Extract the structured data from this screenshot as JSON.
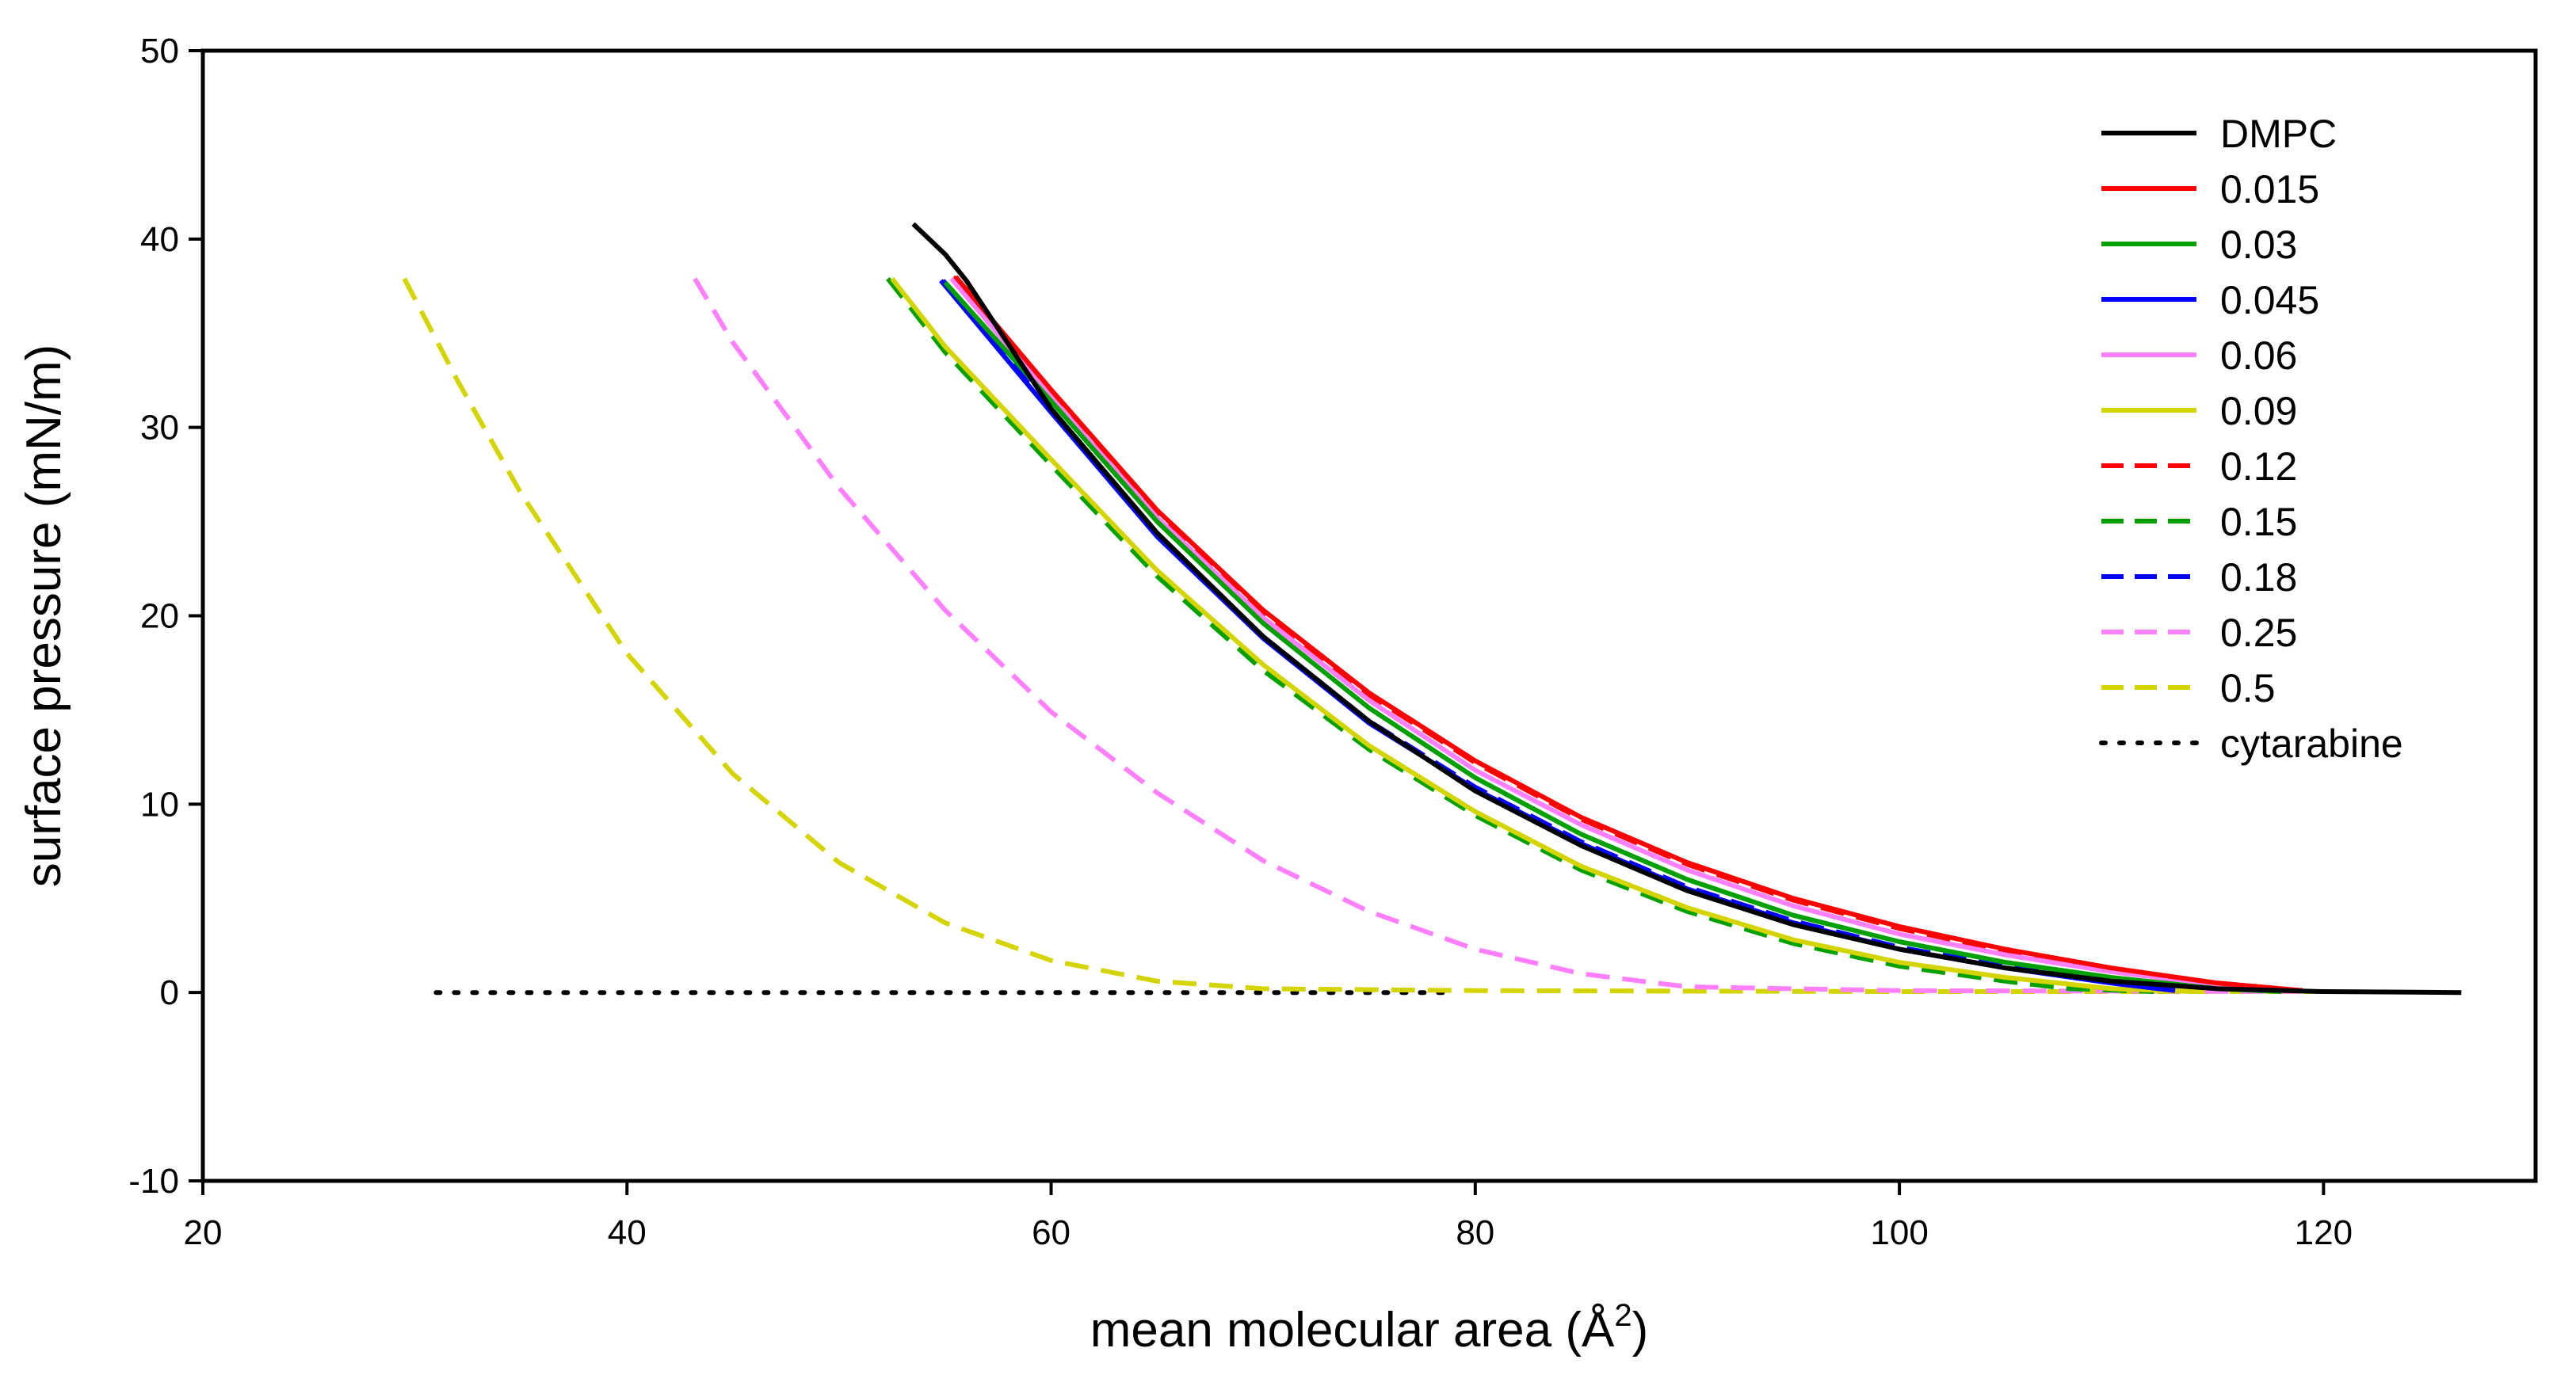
{
  "chart_data": {
    "type": "line",
    "title": "",
    "xlabel": "mean molecular area (Å",
    "xlabel_sup": "2",
    "xlabel_end": ")",
    "ylabel": "surface pressure (mN/m)",
    "xlim": [
      20,
      130
    ],
    "ylim": [
      -10,
      50
    ],
    "xticks": [
      20,
      40,
      60,
      80,
      100,
      120
    ],
    "yticks": [
      -10,
      0,
      10,
      20,
      30,
      40,
      50
    ],
    "grid": false,
    "legend_position": "top-right",
    "series": [
      {
        "name": "DMPC",
        "color": "#000000",
        "style": "solid",
        "points": [
          [
            53.5,
            40.8
          ],
          [
            55.0,
            39.2
          ],
          [
            56.0,
            37.8
          ],
          [
            60,
            31.0
          ],
          [
            65,
            24.4
          ],
          [
            70,
            18.9
          ],
          [
            75,
            14.4
          ],
          [
            80,
            10.7
          ],
          [
            85,
            7.8
          ],
          [
            90,
            5.4
          ],
          [
            95,
            3.6
          ],
          [
            100,
            2.3
          ],
          [
            105,
            1.3
          ],
          [
            110,
            0.6
          ],
          [
            115,
            0.2
          ],
          [
            120,
            0.05
          ],
          [
            126.5,
            0.0
          ]
        ]
      },
      {
        "name": "0.015",
        "color": "#ff0000",
        "style": "solid",
        "points": [
          [
            55.5,
            38.0
          ],
          [
            60,
            32.0
          ],
          [
            65,
            25.6
          ],
          [
            70,
            20.3
          ],
          [
            75,
            15.9
          ],
          [
            80,
            12.3
          ],
          [
            85,
            9.3
          ],
          [
            90,
            6.9
          ],
          [
            95,
            5.0
          ],
          [
            100,
            3.5
          ],
          [
            105,
            2.3
          ],
          [
            110,
            1.3
          ],
          [
            115,
            0.5
          ],
          [
            119,
            0.1
          ]
        ]
      },
      {
        "name": "0.03",
        "color": "#00a000",
        "style": "solid",
        "points": [
          [
            55.0,
            37.7
          ],
          [
            60,
            31.4
          ],
          [
            65,
            25.0
          ],
          [
            70,
            19.6
          ],
          [
            75,
            15.1
          ],
          [
            80,
            11.4
          ],
          [
            85,
            8.4
          ],
          [
            90,
            6.0
          ],
          [
            95,
            4.1
          ],
          [
            100,
            2.7
          ],
          [
            105,
            1.6
          ],
          [
            110,
            0.8
          ],
          [
            115,
            0.2
          ],
          [
            118,
            0.05
          ]
        ]
      },
      {
        "name": "0.045",
        "color": "#0000ff",
        "style": "solid",
        "points": [
          [
            54.8,
            37.8
          ],
          [
            60,
            30.8
          ],
          [
            65,
            24.2
          ],
          [
            70,
            18.8
          ],
          [
            75,
            14.3
          ],
          [
            80,
            10.8
          ],
          [
            85,
            7.9
          ],
          [
            90,
            5.5
          ],
          [
            95,
            3.7
          ],
          [
            100,
            2.3
          ],
          [
            105,
            1.3
          ],
          [
            110,
            0.5
          ],
          [
            113,
            0.1
          ]
        ]
      },
      {
        "name": "0.06",
        "color": "#ff80ff",
        "style": "solid",
        "points": [
          [
            55.3,
            37.9
          ],
          [
            60,
            31.6
          ],
          [
            65,
            25.2
          ],
          [
            70,
            19.9
          ],
          [
            75,
            15.5
          ],
          [
            80,
            11.8
          ],
          [
            85,
            8.9
          ],
          [
            90,
            6.5
          ],
          [
            95,
            4.6
          ],
          [
            100,
            3.1
          ],
          [
            105,
            2.0
          ],
          [
            110,
            1.1
          ],
          [
            115,
            0.4
          ],
          [
            118,
            0.05
          ]
        ]
      },
      {
        "name": "0.09",
        "color": "#d4d400",
        "style": "solid",
        "points": [
          [
            52.5,
            37.9
          ],
          [
            55,
            34.3
          ],
          [
            60,
            28.3
          ],
          [
            65,
            22.4
          ],
          [
            70,
            17.4
          ],
          [
            75,
            13.1
          ],
          [
            80,
            9.6
          ],
          [
            85,
            6.7
          ],
          [
            90,
            4.5
          ],
          [
            95,
            2.8
          ],
          [
            100,
            1.6
          ],
          [
            105,
            0.8
          ],
          [
            110,
            0.2
          ],
          [
            114,
            0.05
          ]
        ]
      },
      {
        "name": "0.12",
        "color": "#ff0000",
        "style": "dashed",
        "points": [
          [
            55.4,
            38.0
          ],
          [
            60,
            31.9
          ],
          [
            65,
            25.5
          ],
          [
            70,
            20.2
          ],
          [
            75,
            15.8
          ],
          [
            80,
            12.2
          ],
          [
            85,
            9.2
          ],
          [
            90,
            6.8
          ],
          [
            95,
            4.9
          ],
          [
            100,
            3.4
          ],
          [
            105,
            2.2
          ],
          [
            110,
            1.2
          ],
          [
            115,
            0.5
          ],
          [
            119,
            0.1
          ]
        ]
      },
      {
        "name": "0.15",
        "color": "#00a000",
        "style": "dashed",
        "points": [
          [
            52.3,
            37.9
          ],
          [
            55,
            34.0
          ],
          [
            60,
            28.0
          ],
          [
            65,
            22.1
          ],
          [
            70,
            17.1
          ],
          [
            75,
            12.9
          ],
          [
            80,
            9.4
          ],
          [
            85,
            6.5
          ],
          [
            90,
            4.3
          ],
          [
            95,
            2.6
          ],
          [
            100,
            1.4
          ],
          [
            105,
            0.6
          ],
          [
            108,
            0.2
          ],
          [
            112,
            0.05
          ]
        ]
      },
      {
        "name": "0.18",
        "color": "#0000ff",
        "style": "dashed",
        "points": [
          [
            54.9,
            37.8
          ],
          [
            60,
            30.9
          ],
          [
            65,
            24.3
          ],
          [
            70,
            18.9
          ],
          [
            75,
            14.4
          ],
          [
            80,
            10.9
          ],
          [
            85,
            8.0
          ],
          [
            90,
            5.6
          ],
          [
            95,
            3.8
          ],
          [
            100,
            2.4
          ],
          [
            105,
            1.4
          ],
          [
            110,
            0.6
          ],
          [
            113,
            0.1
          ]
        ]
      },
      {
        "name": "0.25",
        "color": "#ff80ff",
        "style": "dashed",
        "points": [
          [
            43.2,
            37.9
          ],
          [
            45,
            34.5
          ],
          [
            50,
            26.8
          ],
          [
            55,
            20.3
          ],
          [
            60,
            14.9
          ],
          [
            65,
            10.6
          ],
          [
            70,
            7.0
          ],
          [
            75,
            4.3
          ],
          [
            80,
            2.3
          ],
          [
            85,
            1.0
          ],
          [
            90,
            0.3
          ],
          [
            100,
            0.1
          ],
          [
            120,
            0.05
          ]
        ]
      },
      {
        "name": "0.5",
        "color": "#d4d400",
        "style": "dashed",
        "points": [
          [
            29.5,
            37.9
          ],
          [
            32,
            32.5
          ],
          [
            35,
            26.5
          ],
          [
            40,
            18.0
          ],
          [
            45,
            11.6
          ],
          [
            50,
            6.9
          ],
          [
            55,
            3.7
          ],
          [
            60,
            1.7
          ],
          [
            65,
            0.6
          ],
          [
            70,
            0.2
          ],
          [
            80,
            0.1
          ],
          [
            100,
            0.05
          ],
          [
            120,
            0.05
          ]
        ]
      },
      {
        "name": "cytarabine",
        "color": "#000000",
        "style": "dotted",
        "points": [
          [
            31,
            0.0
          ],
          [
            79,
            0.0
          ]
        ]
      }
    ]
  }
}
